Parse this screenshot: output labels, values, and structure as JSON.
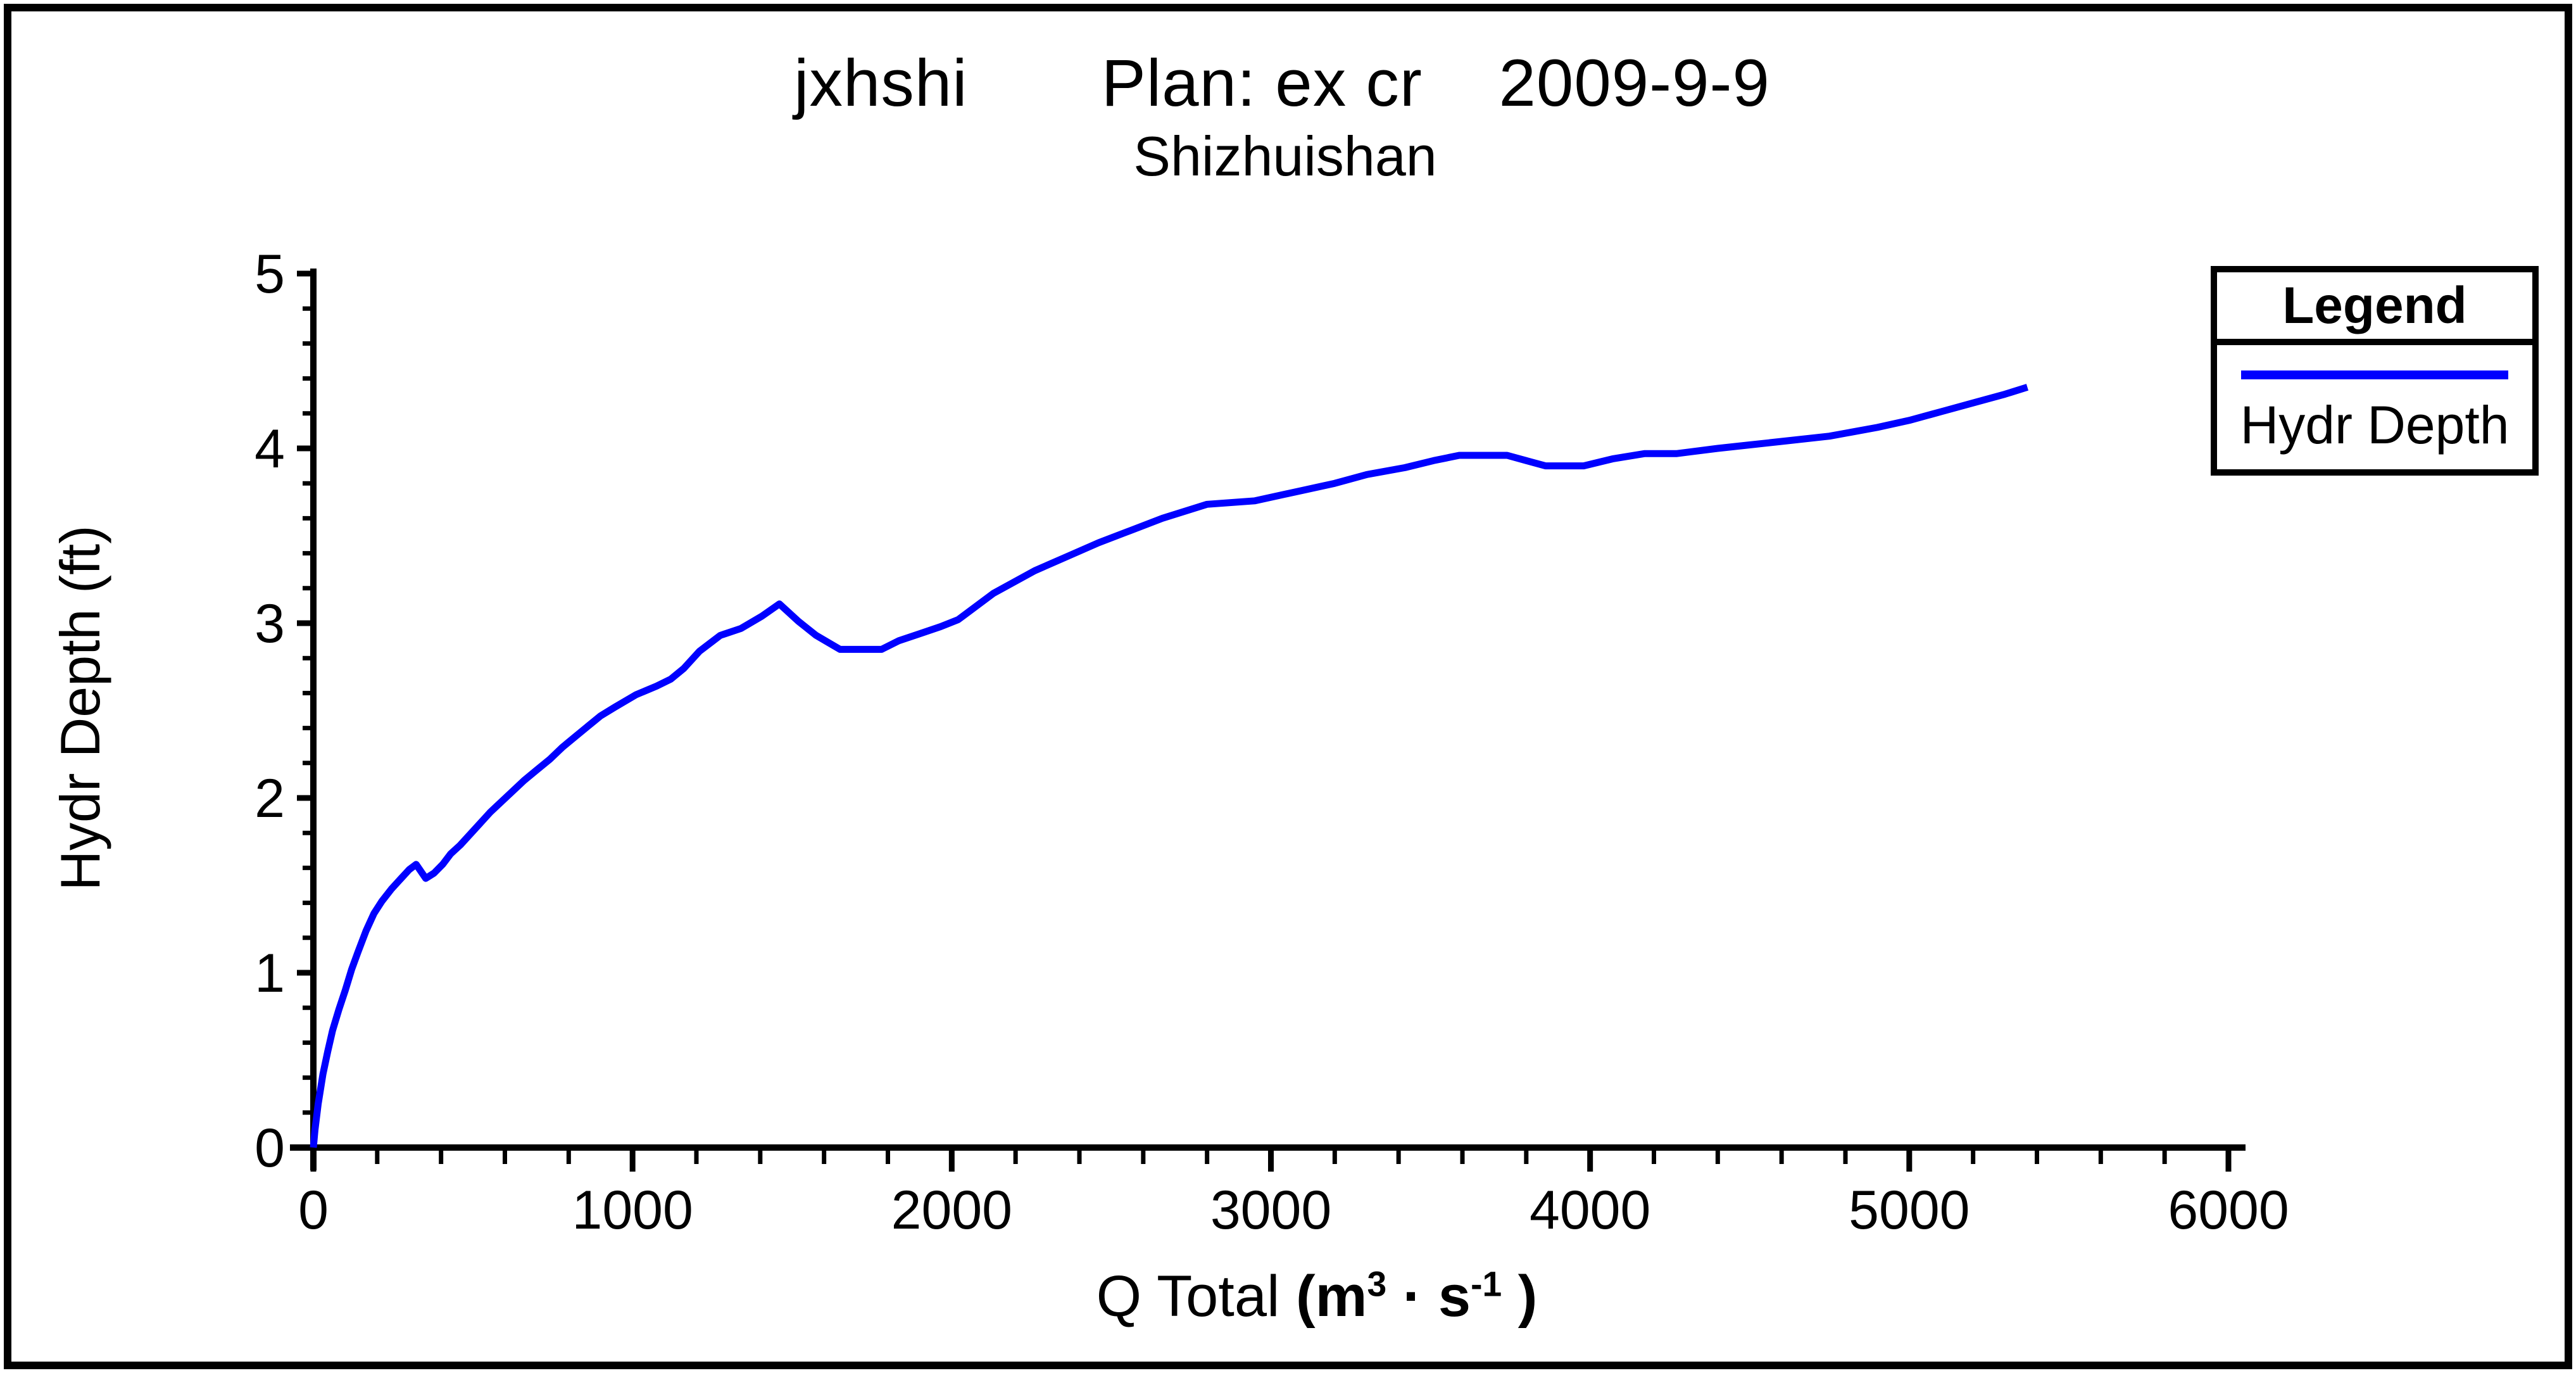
{
  "header": {
    "title": "jxhshi       Plan: ex cr    2009-9-9",
    "subtitle": "Shizhuishan"
  },
  "y_axis": {
    "label": "Hydr Depth (ft)"
  },
  "x_axis": {
    "label_main": "Q Total ",
    "unit_open": "(m",
    "unit_sup1": "3",
    "unit_mid": " · s",
    "unit_sup2": "-1",
    "unit_close": " )"
  },
  "legend": {
    "title": "Legend",
    "items": [
      {
        "label": "Hydr Depth",
        "color": "#0000ff"
      }
    ]
  },
  "chart_data": {
    "type": "line",
    "title": "jxhshi   Plan: ex cr   2009-9-9",
    "subtitle": "Shizhuishan",
    "xlabel": "Q Total (m³·s⁻¹)",
    "ylabel": "Hydr Depth (ft)",
    "xlim": [
      0,
      6000
    ],
    "ylim": [
      0,
      5
    ],
    "x_major_ticks": [
      0,
      1000,
      2000,
      3000,
      4000,
      5000,
      6000
    ],
    "x_minor_tick_step": 200,
    "y_major_ticks": [
      0,
      1,
      2,
      3,
      4,
      5
    ],
    "y_minor_tick_step": 0.2,
    "grid": false,
    "legend_position": "top-right",
    "axis_color": "#000000",
    "series": [
      {
        "name": "Hydr Depth",
        "color": "#0000ff",
        "points": [
          [
            0,
            0
          ],
          [
            5,
            0.1
          ],
          [
            15,
            0.25
          ],
          [
            30,
            0.42
          ],
          [
            45,
            0.55
          ],
          [
            60,
            0.67
          ],
          [
            80,
            0.79
          ],
          [
            100,
            0.9
          ],
          [
            120,
            1.02
          ],
          [
            140,
            1.12
          ],
          [
            165,
            1.24
          ],
          [
            190,
            1.34
          ],
          [
            215,
            1.41
          ],
          [
            245,
            1.48
          ],
          [
            275,
            1.54
          ],
          [
            300,
            1.59
          ],
          [
            322,
            1.62
          ],
          [
            352,
            1.54
          ],
          [
            378,
            1.57
          ],
          [
            405,
            1.62
          ],
          [
            430,
            1.68
          ],
          [
            460,
            1.73
          ],
          [
            490,
            1.79
          ],
          [
            520,
            1.85
          ],
          [
            555,
            1.92
          ],
          [
            590,
            1.98
          ],
          [
            625,
            2.04
          ],
          [
            660,
            2.1
          ],
          [
            700,
            2.16
          ],
          [
            740,
            2.22
          ],
          [
            780,
            2.29
          ],
          [
            820,
            2.35
          ],
          [
            860,
            2.41
          ],
          [
            900,
            2.47
          ],
          [
            945,
            2.52
          ],
          [
            1010,
            2.59
          ],
          [
            1075,
            2.64
          ],
          [
            1120,
            2.68
          ],
          [
            1160,
            2.74
          ],
          [
            1210,
            2.84
          ],
          [
            1275,
            2.93
          ],
          [
            1340,
            2.97
          ],
          [
            1405,
            3.04
          ],
          [
            1460,
            3.11
          ],
          [
            1520,
            3.01
          ],
          [
            1575,
            2.93
          ],
          [
            1650,
            2.85
          ],
          [
            1780,
            2.85
          ],
          [
            1835,
            2.9
          ],
          [
            1900,
            2.94
          ],
          [
            1965,
            2.98
          ],
          [
            2020,
            3.02
          ],
          [
            2130,
            3.17
          ],
          [
            2260,
            3.3
          ],
          [
            2360,
            3.38
          ],
          [
            2460,
            3.46
          ],
          [
            2560,
            3.53
          ],
          [
            2660,
            3.6
          ],
          [
            2800,
            3.68
          ],
          [
            2950,
            3.7
          ],
          [
            3100,
            3.76
          ],
          [
            3200,
            3.8
          ],
          [
            3300,
            3.85
          ],
          [
            3420,
            3.89
          ],
          [
            3510,
            3.93
          ],
          [
            3590,
            3.96
          ],
          [
            3740,
            3.96
          ],
          [
            3800,
            3.93
          ],
          [
            3860,
            3.9
          ],
          [
            3980,
            3.9
          ],
          [
            4070,
            3.94
          ],
          [
            4170,
            3.97
          ],
          [
            4270,
            3.97
          ],
          [
            4400,
            4.0
          ],
          [
            4500,
            4.02
          ],
          [
            4600,
            4.04
          ],
          [
            4750,
            4.07
          ],
          [
            4900,
            4.12
          ],
          [
            5000,
            4.16
          ],
          [
            5100,
            4.21
          ],
          [
            5200,
            4.26
          ],
          [
            5300,
            4.31
          ],
          [
            5370,
            4.35
          ]
        ]
      }
    ]
  }
}
